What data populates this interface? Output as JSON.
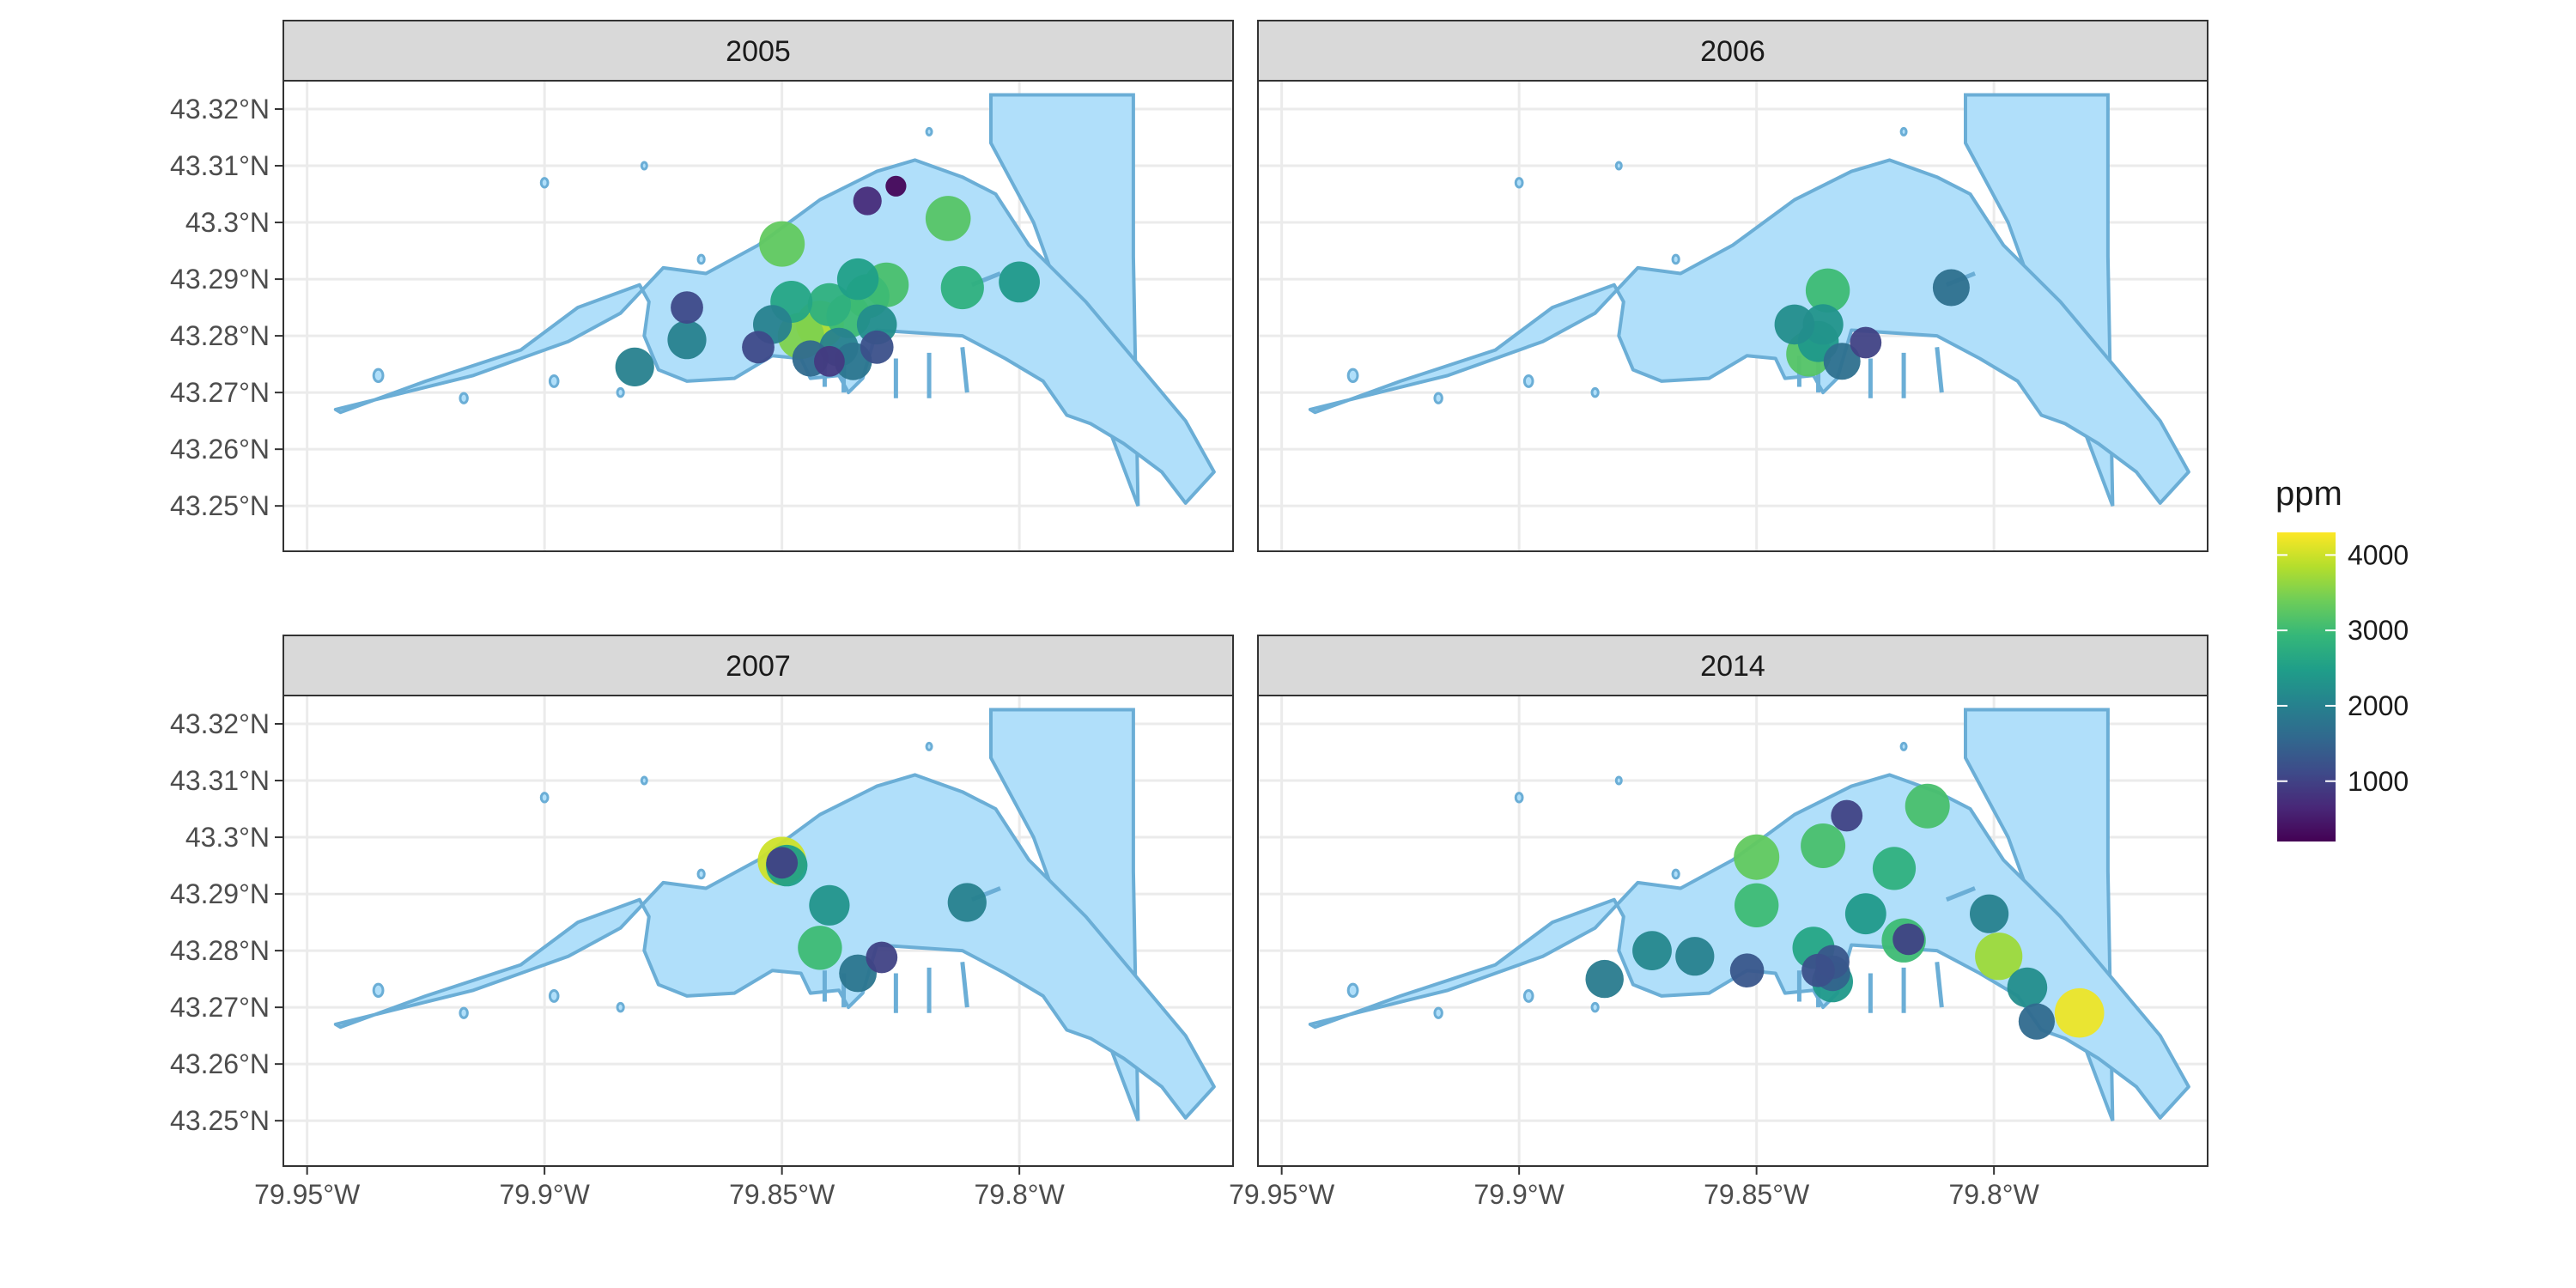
{
  "chart_data": {
    "type": "scatter",
    "subtype": "faceted map (bubble map)",
    "facets": [
      "2005",
      "2006",
      "2007",
      "2014"
    ],
    "x_axis": {
      "range": [
        -79.955,
        -79.755
      ],
      "ticks": [
        -79.95,
        -79.9,
        -79.85,
        -79.8
      ],
      "tick_labels": [
        "79.95°W",
        "79.9°W",
        "79.85°W",
        "79.8°W"
      ]
    },
    "y_axis": {
      "range": [
        43.242,
        43.325
      ],
      "ticks": [
        43.25,
        43.26,
        43.27,
        43.28,
        43.29,
        43.3,
        43.31,
        43.32
      ],
      "tick_labels": [
        "43.25°N",
        "43.26°N",
        "43.27°N",
        "43.28°N",
        "43.29°N",
        "43.3°N",
        "43.31°N",
        "43.32°N"
      ]
    },
    "grid": true,
    "legend": {
      "title": "ppm",
      "position": "right",
      "scale": "viridis",
      "range": [
        200,
        4300
      ],
      "ticks": [
        1000,
        2000,
        3000,
        4000
      ],
      "tick_labels": [
        "1000",
        "2000",
        "3000",
        "4000"
      ]
    },
    "colors": {
      "water_fill": "#b0dffa",
      "water_outline": "#6baed6",
      "strip_fill": "#d9d9d9",
      "viridis": [
        "#440154",
        "#482878",
        "#3e4a89",
        "#31688e",
        "#26828e",
        "#1f9e89",
        "#35b779",
        "#6dcd59",
        "#b4de2c",
        "#fde725"
      ]
    },
    "series": [
      {
        "facet": "2005",
        "points": [
          {
            "lon": -79.85,
            "lat": 43.2962,
            "ppm": 3300
          },
          {
            "lon": -79.815,
            "lat": 43.3007,
            "ppm": 3200
          },
          {
            "lon": -79.832,
            "lat": 43.3038,
            "ppm": 700
          },
          {
            "lon": -79.826,
            "lat": 43.3064,
            "ppm": 250
          },
          {
            "lon": -79.87,
            "lat": 43.285,
            "ppm": 1100
          },
          {
            "lon": -79.87,
            "lat": 43.2793,
            "ppm": 2000
          },
          {
            "lon": -79.881,
            "lat": 43.2745,
            "ppm": 2000
          },
          {
            "lon": -79.812,
            "lat": 43.2885,
            "ppm": 2800
          },
          {
            "lon": -79.8,
            "lat": 43.2895,
            "ppm": 2400
          },
          {
            "lon": -79.855,
            "lat": 43.278,
            "ppm": 1100
          },
          {
            "lon": -79.852,
            "lat": 43.282,
            "ppm": 2000
          },
          {
            "lon": -79.848,
            "lat": 43.286,
            "ppm": 2600
          },
          {
            "lon": -79.846,
            "lat": 43.28,
            "ppm": 3500
          },
          {
            "lon": -79.842,
            "lat": 43.282,
            "ppm": 3800
          },
          {
            "lon": -79.84,
            "lat": 43.2855,
            "ppm": 2800
          },
          {
            "lon": -79.838,
            "lat": 43.278,
            "ppm": 2000
          },
          {
            "lon": -79.836,
            "lat": 43.2835,
            "ppm": 3000
          },
          {
            "lon": -79.834,
            "lat": 43.29,
            "ppm": 2500
          },
          {
            "lon": -79.832,
            "lat": 43.287,
            "ppm": 3000
          },
          {
            "lon": -79.83,
            "lat": 43.282,
            "ppm": 2200
          },
          {
            "lon": -79.828,
            "lat": 43.289,
            "ppm": 3100
          },
          {
            "lon": -79.83,
            "lat": 43.278,
            "ppm": 1200
          },
          {
            "lon": -79.844,
            "lat": 43.276,
            "ppm": 1600
          },
          {
            "lon": -79.84,
            "lat": 43.2755,
            "ppm": 900
          },
          {
            "lon": -79.835,
            "lat": 43.2755,
            "ppm": 1800
          }
        ]
      },
      {
        "facet": "2006",
        "points": [
          {
            "lon": -79.835,
            "lat": 43.288,
            "ppm": 3000
          },
          {
            "lon": -79.839,
            "lat": 43.2768,
            "ppm": 3200
          },
          {
            "lon": -79.837,
            "lat": 43.279,
            "ppm": 2400
          },
          {
            "lon": -79.842,
            "lat": 43.282,
            "ppm": 2200
          },
          {
            "lon": -79.836,
            "lat": 43.282,
            "ppm": 2300
          },
          {
            "lon": -79.832,
            "lat": 43.2755,
            "ppm": 1700
          },
          {
            "lon": -79.827,
            "lat": 43.2788,
            "ppm": 1000
          },
          {
            "lon": -79.809,
            "lat": 43.2885,
            "ppm": 1700
          }
        ]
      },
      {
        "facet": "2007",
        "points": [
          {
            "lon": -79.85,
            "lat": 43.2958,
            "ppm": 4000
          },
          {
            "lon": -79.849,
            "lat": 43.295,
            "ppm": 2500
          },
          {
            "lon": -79.85,
            "lat": 43.2955,
            "ppm": 1000
          },
          {
            "lon": -79.84,
            "lat": 43.288,
            "ppm": 2300
          },
          {
            "lon": -79.842,
            "lat": 43.2805,
            "ppm": 3000
          },
          {
            "lon": -79.834,
            "lat": 43.276,
            "ppm": 1800
          },
          {
            "lon": -79.829,
            "lat": 43.2788,
            "ppm": 1000
          },
          {
            "lon": -79.811,
            "lat": 43.2885,
            "ppm": 2000
          }
        ]
      },
      {
        "facet": "2014",
        "points": [
          {
            "lon": -79.831,
            "lat": 43.3038,
            "ppm": 1000
          },
          {
            "lon": -79.814,
            "lat": 43.3055,
            "ppm": 3100
          },
          {
            "lon": -79.85,
            "lat": 43.2965,
            "ppm": 3300
          },
          {
            "lon": -79.836,
            "lat": 43.2985,
            "ppm": 3100
          },
          {
            "lon": -79.821,
            "lat": 43.2945,
            "ppm": 2800
          },
          {
            "lon": -79.85,
            "lat": 43.288,
            "ppm": 3000
          },
          {
            "lon": -79.827,
            "lat": 43.2865,
            "ppm": 2400
          },
          {
            "lon": -79.801,
            "lat": 43.2865,
            "ppm": 2000
          },
          {
            "lon": -79.838,
            "lat": 43.2805,
            "ppm": 2600
          },
          {
            "lon": -79.818,
            "lat": 43.282,
            "ppm": 1000
          },
          {
            "lon": -79.819,
            "lat": 43.2818,
            "ppm": 3000
          },
          {
            "lon": -79.872,
            "lat": 43.28,
            "ppm": 2100
          },
          {
            "lon": -79.863,
            "lat": 43.279,
            "ppm": 2000
          },
          {
            "lon": -79.882,
            "lat": 43.275,
            "ppm": 1900
          },
          {
            "lon": -79.852,
            "lat": 43.2765,
            "ppm": 1300
          },
          {
            "lon": -79.837,
            "lat": 43.2765,
            "ppm": 1200
          },
          {
            "lon": -79.834,
            "lat": 43.278,
            "ppm": 1300
          },
          {
            "lon": -79.834,
            "lat": 43.2745,
            "ppm": 2400
          },
          {
            "lon": -79.834,
            "lat": 43.276,
            "ppm": 1500
          },
          {
            "lon": -79.799,
            "lat": 43.279,
            "ppm": 3700
          },
          {
            "lon": -79.793,
            "lat": 43.2735,
            "ppm": 2200
          },
          {
            "lon": -79.791,
            "lat": 43.2675,
            "ppm": 1600
          },
          {
            "lon": -79.782,
            "lat": 43.269,
            "ppm": 4200
          }
        ]
      }
    ]
  }
}
